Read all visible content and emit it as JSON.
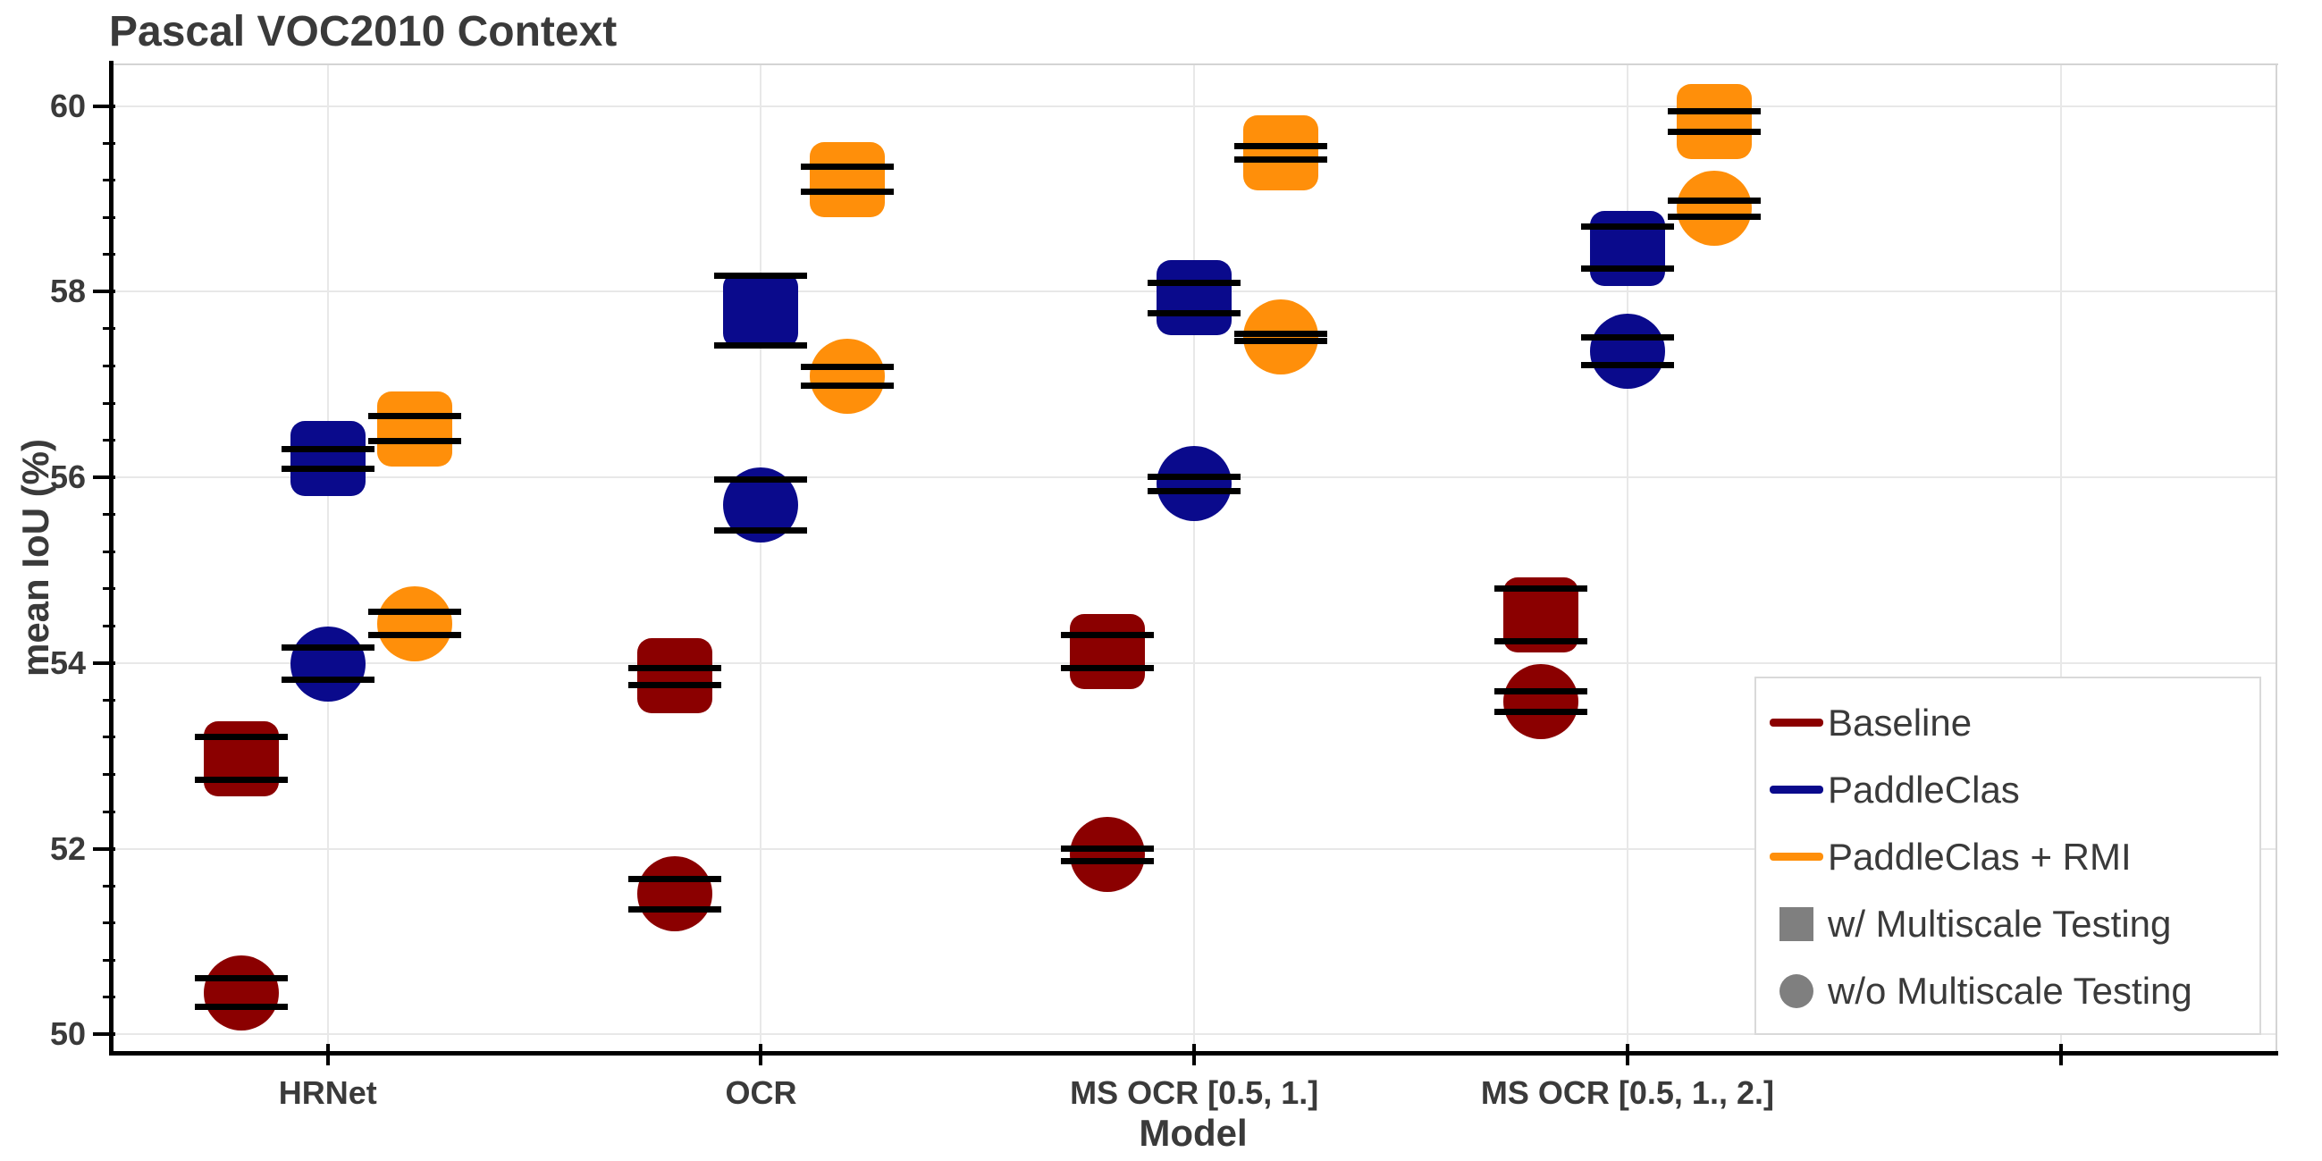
{
  "title": "Pascal VOC2010 Context",
  "axes": {
    "xlabel": "Model",
    "ylabel": "mean IoU (%)"
  },
  "legend": {
    "items": [
      {
        "label": "Baseline",
        "swatch": "line",
        "color": "#8B0000"
      },
      {
        "label": "PaddleClas",
        "swatch": "line",
        "color": "#0A0A8C"
      },
      {
        "label": "PaddleClas + RMI",
        "swatch": "line",
        "color": "#FF8F0A"
      },
      {
        "label": "w/ Multiscale Testing",
        "swatch": "square",
        "color": "#7F7F7F"
      },
      {
        "label": "w/o Multiscale Testing",
        "swatch": "circle",
        "color": "#7F7F7F"
      }
    ]
  },
  "chart_data": {
    "type": "scatter",
    "title": "Pascal VOC2010 Context",
    "xlabel": "Model",
    "ylabel": "mean IoU (%)",
    "categories": [
      "HRNet",
      "OCR",
      "MS OCR [0.5, 1.]",
      "MS OCR [0.5, 1., 2.]"
    ],
    "yticks": [
      50,
      52,
      54,
      56,
      58,
      60
    ],
    "ylim": [
      49.82,
      60.44
    ],
    "xlim": [
      -0.505,
      4.5
    ],
    "minor_tick_step": 0.4,
    "grid": true,
    "legend_position": "lower right",
    "marker_meaning": {
      "square": "w/ Multiscale Testing",
      "circle": "w/o Multiscale Testing"
    },
    "series": [
      {
        "name": "Baseline",
        "color": "#8B0000",
        "dodge": -0.2,
        "w_multiscale": {
          "marker": "square",
          "values": [
            52.97,
            53.86,
            54.12,
            54.52
          ],
          "runs": [
            [
              53.2,
              52.74
            ],
            [
              53.95,
              53.76
            ],
            [
              54.3,
              53.95
            ],
            [
              54.8,
              54.23
            ]
          ]
        },
        "wo_multiscale": {
          "marker": "circle",
          "values": [
            50.45,
            51.51,
            51.94,
            53.58
          ],
          "runs": [
            [
              50.6,
              50.3
            ],
            [
              51.67,
              51.35
            ],
            [
              52.0,
              51.87
            ],
            [
              53.7,
              53.47
            ]
          ]
        }
      },
      {
        "name": "PaddleClas",
        "color": "#0A0A8C",
        "dodge": 0,
        "w_multiscale": {
          "marker": "square",
          "values": [
            56.2,
            57.8,
            57.94,
            58.47
          ],
          "runs": [
            [
              56.3,
              56.09
            ],
            [
              58.17,
              57.42
            ],
            [
              58.1,
              57.77
            ],
            [
              58.7,
              58.25
            ]
          ]
        },
        "wo_multiscale": {
          "marker": "circle",
          "values": [
            53.99,
            55.7,
            55.93,
            57.36
          ],
          "runs": [
            [
              54.17,
              53.82
            ],
            [
              55.98,
              55.43
            ],
            [
              56.01,
              55.85
            ],
            [
              57.51,
              57.21
            ]
          ]
        }
      },
      {
        "name": "PaddleClas + RMI",
        "color": "#FF8F0A",
        "dodge": 0.2,
        "w_multiscale": {
          "marker": "square",
          "values": [
            56.52,
            59.21,
            59.5,
            59.83
          ],
          "runs": [
            [
              56.66,
              56.39
            ],
            [
              59.35,
              59.08
            ],
            [
              59.57,
              59.42
            ],
            [
              59.94,
              59.72
            ]
          ]
        },
        "wo_multiscale": {
          "marker": "circle",
          "values": [
            54.42,
            57.09,
            57.51,
            58.9
          ],
          "runs": [
            [
              54.55,
              54.3
            ],
            [
              57.19,
              56.99
            ],
            [
              57.55,
              57.47
            ],
            [
              58.98,
              58.81
            ]
          ]
        }
      }
    ]
  }
}
